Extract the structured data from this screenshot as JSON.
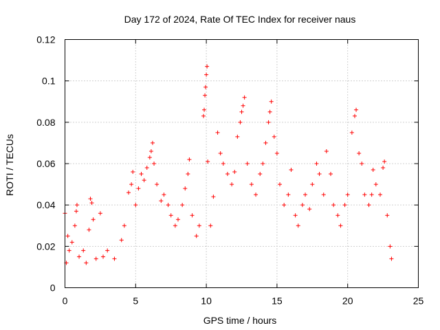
{
  "chart_data": {
    "type": "scatter",
    "title": "Day 172 of 2024, Rate Of TEC Index for receiver naus",
    "xlabel": "GPS time / hours",
    "ylabel": "ROTI / TECUs",
    "xlim": [
      0,
      25
    ],
    "ylim": [
      0,
      0.12
    ],
    "xticks": [
      0,
      5,
      10,
      15,
      20,
      25
    ],
    "xtick_labels": [
      "0",
      "5",
      "10",
      "15",
      "20",
      "25"
    ],
    "yticks": [
      0,
      0.02,
      0.04,
      0.06,
      0.08,
      0.1,
      0.12
    ],
    "ytick_labels": [
      "0",
      "0.02",
      "0.04",
      "0.06",
      "0.08",
      "0.1",
      "0.12"
    ],
    "grid": true,
    "marker": "plus",
    "color": "#ff0000",
    "series": [
      {
        "points": [
          [
            0.0,
            0.036
          ],
          [
            0.1,
            0.012
          ],
          [
            0.2,
            0.025
          ],
          [
            0.3,
            0.018
          ],
          [
            0.5,
            0.022
          ],
          [
            0.7,
            0.03
          ],
          [
            0.8,
            0.037
          ],
          [
            0.85,
            0.04
          ],
          [
            1.0,
            0.015
          ],
          [
            1.3,
            0.018
          ],
          [
            1.5,
            0.012
          ],
          [
            1.7,
            0.028
          ],
          [
            1.8,
            0.043
          ],
          [
            1.9,
            0.041
          ],
          [
            2.0,
            0.033
          ],
          [
            2.2,
            0.014
          ],
          [
            2.5,
            0.036
          ],
          [
            2.7,
            0.015
          ],
          [
            3.0,
            0.018
          ],
          [
            3.5,
            0.014
          ],
          [
            4.0,
            0.023
          ],
          [
            4.2,
            0.03
          ],
          [
            4.5,
            0.046
          ],
          [
            4.7,
            0.05
          ],
          [
            4.8,
            0.056
          ],
          [
            5.0,
            0.04
          ],
          [
            5.2,
            0.048
          ],
          [
            5.4,
            0.055
          ],
          [
            5.6,
            0.052
          ],
          [
            5.8,
            0.058
          ],
          [
            6.0,
            0.063
          ],
          [
            6.1,
            0.066
          ],
          [
            6.2,
            0.07
          ],
          [
            6.3,
            0.06
          ],
          [
            6.5,
            0.05
          ],
          [
            6.8,
            0.042
          ],
          [
            7.0,
            0.045
          ],
          [
            7.3,
            0.04
          ],
          [
            7.5,
            0.035
          ],
          [
            7.8,
            0.03
          ],
          [
            8.0,
            0.033
          ],
          [
            8.3,
            0.04
          ],
          [
            8.5,
            0.048
          ],
          [
            8.7,
            0.055
          ],
          [
            8.8,
            0.062
          ],
          [
            9.0,
            0.035
          ],
          [
            9.3,
            0.025
          ],
          [
            9.5,
            0.03
          ],
          [
            9.8,
            0.083
          ],
          [
            9.85,
            0.086
          ],
          [
            9.9,
            0.093
          ],
          [
            9.95,
            0.097
          ],
          [
            10.0,
            0.103
          ],
          [
            10.05,
            0.107
          ],
          [
            10.1,
            0.061
          ],
          [
            10.3,
            0.03
          ],
          [
            10.5,
            0.044
          ],
          [
            10.8,
            0.075
          ],
          [
            11.0,
            0.065
          ],
          [
            11.2,
            0.06
          ],
          [
            11.5,
            0.055
          ],
          [
            11.8,
            0.05
          ],
          [
            12.0,
            0.056
          ],
          [
            12.2,
            0.073
          ],
          [
            12.4,
            0.08
          ],
          [
            12.5,
            0.085
          ],
          [
            12.6,
            0.088
          ],
          [
            12.7,
            0.092
          ],
          [
            12.9,
            0.06
          ],
          [
            13.2,
            0.05
          ],
          [
            13.5,
            0.045
          ],
          [
            13.8,
            0.055
          ],
          [
            14.0,
            0.06
          ],
          [
            14.2,
            0.07
          ],
          [
            14.4,
            0.08
          ],
          [
            14.5,
            0.085
          ],
          [
            14.6,
            0.09
          ],
          [
            14.8,
            0.073
          ],
          [
            15.0,
            0.065
          ],
          [
            15.2,
            0.05
          ],
          [
            15.5,
            0.04
          ],
          [
            15.8,
            0.045
          ],
          [
            16.0,
            0.057
          ],
          [
            16.3,
            0.035
          ],
          [
            16.5,
            0.03
          ],
          [
            16.8,
            0.04
          ],
          [
            17.0,
            0.045
          ],
          [
            17.3,
            0.038
          ],
          [
            17.5,
            0.05
          ],
          [
            17.8,
            0.06
          ],
          [
            18.0,
            0.055
          ],
          [
            18.3,
            0.045
          ],
          [
            18.5,
            0.066
          ],
          [
            18.8,
            0.055
          ],
          [
            19.0,
            0.04
          ],
          [
            19.3,
            0.035
          ],
          [
            19.5,
            0.03
          ],
          [
            19.8,
            0.04
          ],
          [
            20.0,
            0.045
          ],
          [
            20.3,
            0.075
          ],
          [
            20.5,
            0.083
          ],
          [
            20.6,
            0.086
          ],
          [
            20.8,
            0.065
          ],
          [
            21.0,
            0.06
          ],
          [
            21.2,
            0.045
          ],
          [
            21.5,
            0.04
          ],
          [
            21.7,
            0.045
          ],
          [
            21.8,
            0.057
          ],
          [
            22.0,
            0.05
          ],
          [
            22.3,
            0.045
          ],
          [
            22.5,
            0.058
          ],
          [
            22.6,
            0.061
          ],
          [
            22.8,
            0.035
          ],
          [
            23.0,
            0.02
          ],
          [
            23.1,
            0.014
          ]
        ]
      }
    ]
  }
}
